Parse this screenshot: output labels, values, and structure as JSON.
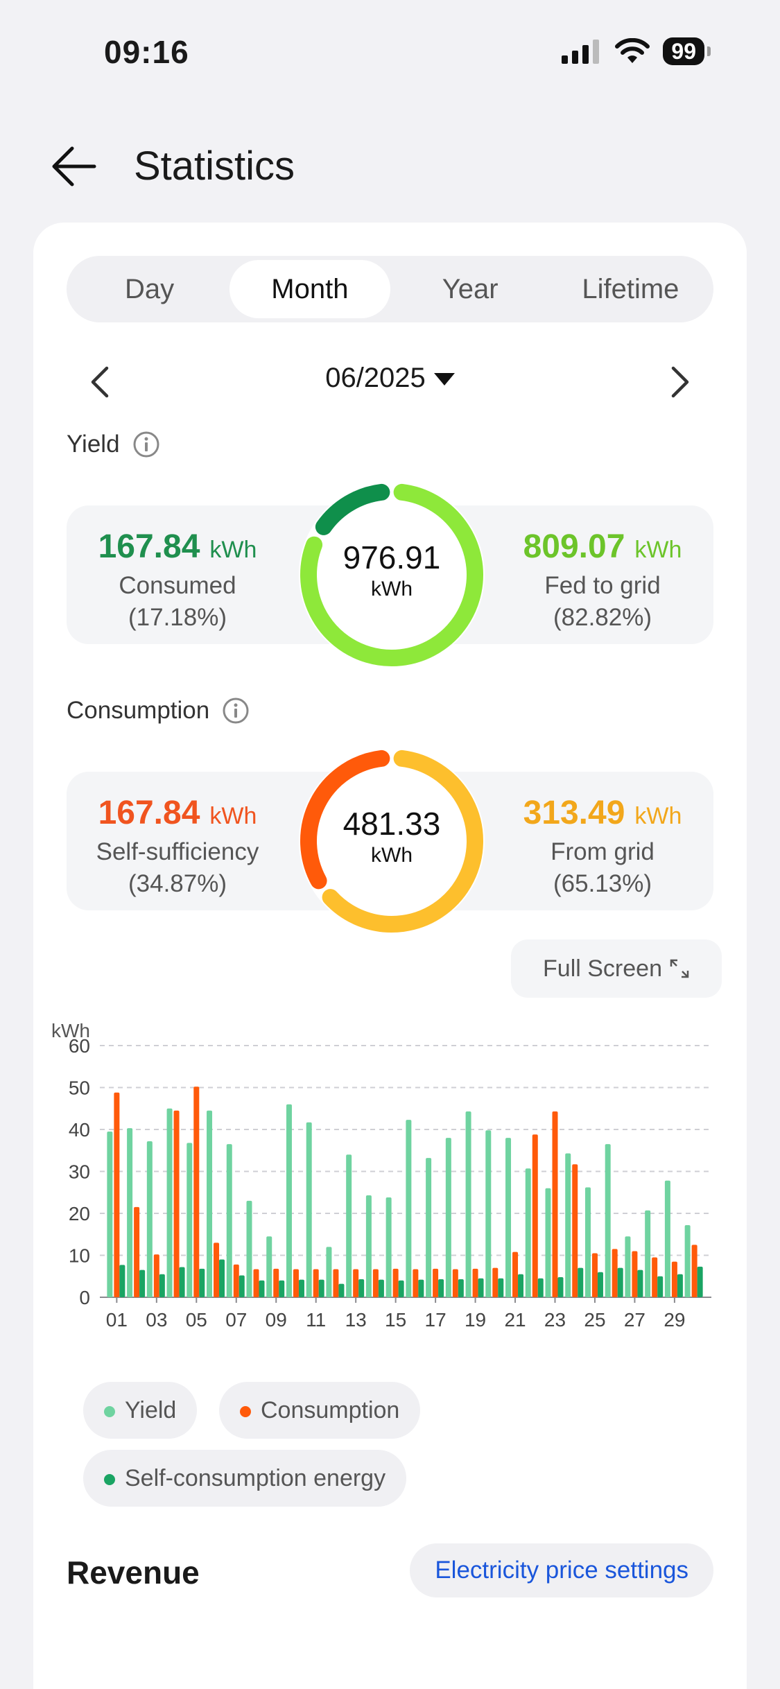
{
  "status_bar": {
    "time": "09:16",
    "battery": "99"
  },
  "header": {
    "title": "Statistics"
  },
  "tabs": [
    {
      "label": "Day",
      "active": false
    },
    {
      "label": "Month",
      "active": true
    },
    {
      "label": "Year",
      "active": false
    },
    {
      "label": "Lifetime",
      "active": false
    }
  ],
  "period": {
    "label": "06/2025"
  },
  "yield": {
    "label": "Yield",
    "total": "976.91",
    "unit": "kWh",
    "consumed": {
      "value": "167.84",
      "unit": "kWh",
      "label": "Consumed",
      "percent": "(17.18%)",
      "color": "#1f8f4e"
    },
    "fed": {
      "value": "809.07",
      "unit": "kWh",
      "label": "Fed to grid",
      "percent": "(82.82%)",
      "color": "#6cc42a"
    },
    "ring": {
      "consumed_fraction": 0.1718,
      "consumed_color": "#0f8f4b",
      "fed_color": "#8ee83a"
    }
  },
  "consumption": {
    "label": "Consumption",
    "total": "481.33",
    "unit": "kWh",
    "self": {
      "value": "167.84",
      "unit": "kWh",
      "label": "Self-sufficiency",
      "percent": "(34.87%)",
      "color": "#f0541f"
    },
    "grid": {
      "value": "313.49",
      "unit": "kWh",
      "label": "From grid",
      "percent": "(65.13%)",
      "color": "#f2a71b"
    },
    "ring": {
      "self_fraction": 0.3487,
      "self_color": "#ff5a0a",
      "grid_color": "#fdbf2d"
    }
  },
  "fullscreen_label": "Full Screen",
  "chart_data": {
    "type": "bar",
    "ylabel": "kWh",
    "ylim": [
      0,
      60
    ],
    "yticks": [
      0,
      10,
      20,
      30,
      40,
      50,
      60
    ],
    "grid": true,
    "xtick_labels": [
      "01",
      "03",
      "05",
      "07",
      "09",
      "11",
      "13",
      "15",
      "17",
      "19",
      "21",
      "23",
      "25",
      "27",
      "29"
    ],
    "categories": [
      "01",
      "02",
      "03",
      "04",
      "05",
      "06",
      "07",
      "08",
      "09",
      "10",
      "11",
      "12",
      "13",
      "14",
      "15",
      "16",
      "17",
      "18",
      "19",
      "20",
      "21",
      "22",
      "23",
      "24",
      "25",
      "26",
      "27",
      "28",
      "29",
      "30"
    ],
    "series": [
      {
        "name": "Yield",
        "color": "#6fd3a0",
        "values": [
          39.5,
          40.3,
          37.2,
          45.0,
          36.8,
          44.5,
          36.5,
          23.0,
          14.5,
          46.0,
          41.7,
          12.0,
          34.0,
          24.3,
          23.8,
          42.3,
          33.2,
          38.0,
          44.3,
          39.8,
          38.0,
          30.7,
          26.0,
          34.3,
          26.2,
          36.5,
          14.5,
          20.7,
          27.8,
          17.2
        ]
      },
      {
        "name": "Consumption",
        "color": "#ff5a0a",
        "values": [
          48.8,
          21.5,
          10.2,
          44.5,
          50.2,
          13.0,
          7.8,
          6.7,
          6.8,
          6.7,
          6.7,
          6.7,
          6.7,
          6.7,
          6.8,
          6.7,
          6.8,
          6.7,
          6.8,
          7.0,
          10.8,
          38.8,
          44.3,
          31.7,
          10.5,
          11.5,
          11.0,
          9.5,
          8.5,
          12.5
        ]
      },
      {
        "name": "Self-consumption energy",
        "color": "#1aa463",
        "values": [
          7.7,
          6.5,
          5.5,
          7.2,
          6.8,
          9.0,
          5.2,
          4.0,
          4.0,
          4.2,
          4.2,
          3.2,
          4.3,
          4.2,
          4.0,
          4.2,
          4.3,
          4.3,
          4.5,
          4.5,
          5.5,
          4.5,
          4.8,
          7.0,
          6.0,
          7.0,
          6.5,
          5.0,
          5.5,
          7.3
        ]
      }
    ]
  },
  "legend": [
    {
      "label": "Yield",
      "color": "#6fd3a0"
    },
    {
      "label": "Consumption",
      "color": "#ff5a0a"
    },
    {
      "label": "Self-consumption energy",
      "color": "#1aa463"
    }
  ],
  "revenue": {
    "title": "Revenue",
    "price_button": "Electricity price settings"
  }
}
